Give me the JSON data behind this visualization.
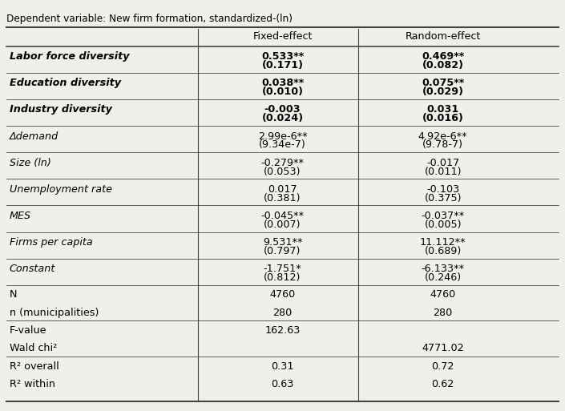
{
  "title": "Dependent variable: New firm formation, standardized-(ln)",
  "col_headers": [
    "",
    "Fixed-effect",
    "Random-effect"
  ],
  "rows": [
    {
      "label": "Labor force diversity",
      "label_bold_italic": true,
      "fe_coef": "0.533**",
      "fe_se": "(0.171)",
      "re_coef": "0.469**",
      "re_se": "(0.082)",
      "coef_bold": true
    },
    {
      "label": "Education diversity",
      "label_bold_italic": true,
      "fe_coef": "0.038**",
      "fe_se": "(0.010)",
      "re_coef": "0.075**",
      "re_se": "(0.029)",
      "coef_bold": true
    },
    {
      "label": "Industry diversity",
      "label_bold_italic": true,
      "fe_coef": "-0.003",
      "fe_se": "(0.024)",
      "re_coef": "0.031",
      "re_se": "(0.016)",
      "coef_bold": true
    },
    {
      "label": "Δdemand",
      "label_bold_italic": false,
      "label_italic": true,
      "fe_coef": "2.99e-6**",
      "fe_se": "(9.34e-7)",
      "re_coef": "4.92e-6**",
      "re_se": "(9.78-7)",
      "coef_bold": false
    },
    {
      "label": "Size (ln)",
      "label_bold_italic": false,
      "label_italic": true,
      "fe_coef": "-0.279**",
      "fe_se": "(0.053)",
      "re_coef": "-0.017",
      "re_se": "(0.011)",
      "coef_bold": false
    },
    {
      "label": "Unemployment rate",
      "label_bold_italic": false,
      "label_italic": true,
      "fe_coef": "0.017",
      "fe_se": "(0.381)",
      "re_coef": "-0.103",
      "re_se": "(0.375)",
      "coef_bold": false
    },
    {
      "label": "MES",
      "label_bold_italic": false,
      "label_italic": true,
      "fe_coef": "-0.045**",
      "fe_se": "(0.007)",
      "re_coef": "-0.037**",
      "re_se": "(0.005)",
      "coef_bold": false
    },
    {
      "label": "Firms per capita",
      "label_bold_italic": false,
      "label_italic": true,
      "fe_coef": "9.531**",
      "fe_se": "(0.797)",
      "re_coef": "11.112**",
      "re_se": "(0.689)",
      "coef_bold": false
    },
    {
      "label": "Constant",
      "label_bold_italic": false,
      "label_italic": true,
      "fe_coef": "-1.751*",
      "fe_se": "(0.812)",
      "re_coef": "-6.133**",
      "re_se": "(0.246)",
      "coef_bold": false
    }
  ],
  "stats": [
    {
      "label": "N",
      "fe": "4760",
      "re": "4760"
    },
    {
      "label": "n (municipalities)",
      "fe": "280",
      "re": "280"
    },
    {
      "label": "F-value",
      "fe": "162.63",
      "re": ""
    },
    {
      "label": "Wald chi²",
      "fe": "",
      "re": "4771.02"
    },
    {
      "label": "R² overall",
      "fe": "0.31",
      "re": "0.72"
    },
    {
      "label": "R² within",
      "fe": "0.63",
      "re": "0.62"
    }
  ],
  "bg_color": "#f0f0eb",
  "text_color": "#000000",
  "line_color": "#444444",
  "font_size": 9.2
}
